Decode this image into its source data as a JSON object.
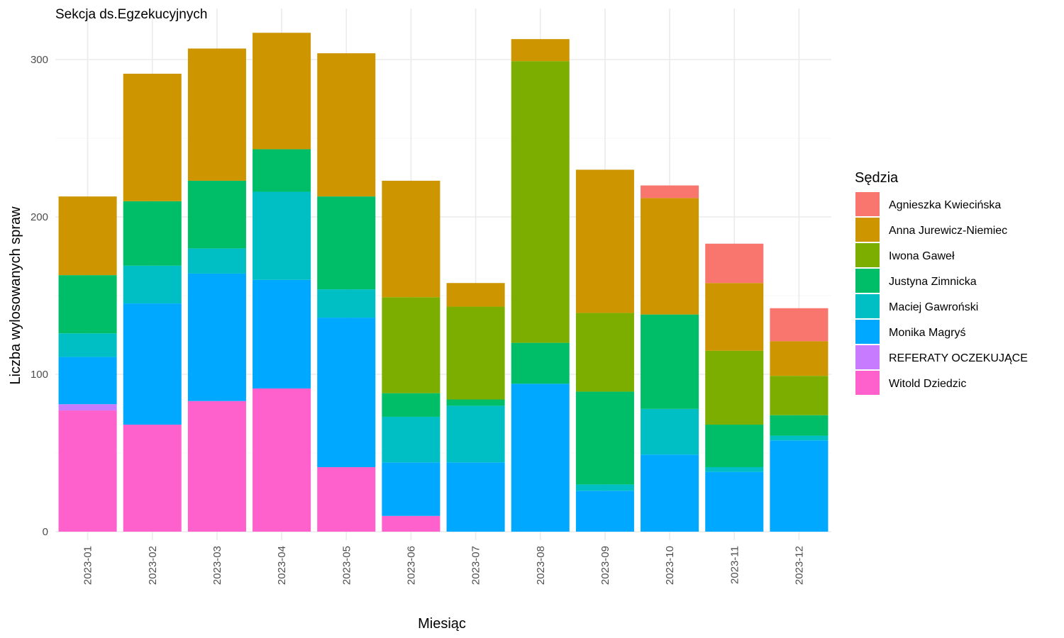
{
  "chart_data": {
    "type": "bar",
    "stacked": true,
    "title": "Sekcja ds.Egzekucyjnych",
    "xlabel": "Miesiąc",
    "ylabel": "Liczba wylosowanych spraw",
    "ylim": [
      0,
      320
    ],
    "yticks": [
      0,
      100,
      200,
      300
    ],
    "grid": true,
    "legend_position": "right",
    "legend_title": "Sędzia",
    "categories": [
      "2023-01",
      "2023-02",
      "2023-03",
      "2023-04",
      "2023-05",
      "2023-06",
      "2023-07",
      "2023-08",
      "2023-09",
      "2023-10",
      "2023-11",
      "2023-12"
    ],
    "series": [
      {
        "name": "Witold Dziedzic",
        "color": "#FF61CC",
        "values": [
          77,
          68,
          83,
          91,
          41,
          10,
          0,
          0,
          0,
          0,
          0,
          0
        ]
      },
      {
        "name": "REFERATY OCZEKUJĄCE",
        "color": "#C77CFF",
        "values": [
          4,
          0,
          0,
          0,
          0,
          0,
          0,
          0,
          0,
          0,
          0,
          0
        ]
      },
      {
        "name": "Monika Magryś",
        "color": "#00A9FF",
        "values": [
          30,
          77,
          81,
          69,
          95,
          34,
          44,
          94,
          26,
          49,
          38,
          58
        ]
      },
      {
        "name": "Maciej Gawroński",
        "color": "#00BFC4",
        "values": [
          15,
          24,
          16,
          56,
          18,
          29,
          36,
          0,
          4,
          29,
          3,
          3
        ]
      },
      {
        "name": "Justyna Zimnicka",
        "color": "#00BE67",
        "values": [
          37,
          41,
          43,
          27,
          59,
          15,
          4,
          26,
          59,
          60,
          27,
          13
        ]
      },
      {
        "name": "Iwona Gaweł",
        "color": "#7CAE00",
        "values": [
          0,
          0,
          0,
          0,
          0,
          61,
          59,
          179,
          50,
          0,
          47,
          25
        ]
      },
      {
        "name": "Anna Jurewicz-Niemiec",
        "color": "#CD9600",
        "values": [
          50,
          81,
          84,
          74,
          91,
          74,
          15,
          14,
          91,
          74,
          43,
          22
        ]
      },
      {
        "name": "Agnieszka Kwiecińska",
        "color": "#F8766D",
        "values": [
          0,
          0,
          0,
          0,
          0,
          0,
          0,
          0,
          0,
          8,
          25,
          21
        ]
      }
    ],
    "legend_order": [
      "Agnieszka Kwiecińska",
      "Anna Jurewicz-Niemiec",
      "Iwona Gaweł",
      "Justyna Zimnicka",
      "Maciej Gawroński",
      "Monika Magryś",
      "REFERATY OCZEKUJĄCE",
      "Witold Dziedzic"
    ]
  }
}
